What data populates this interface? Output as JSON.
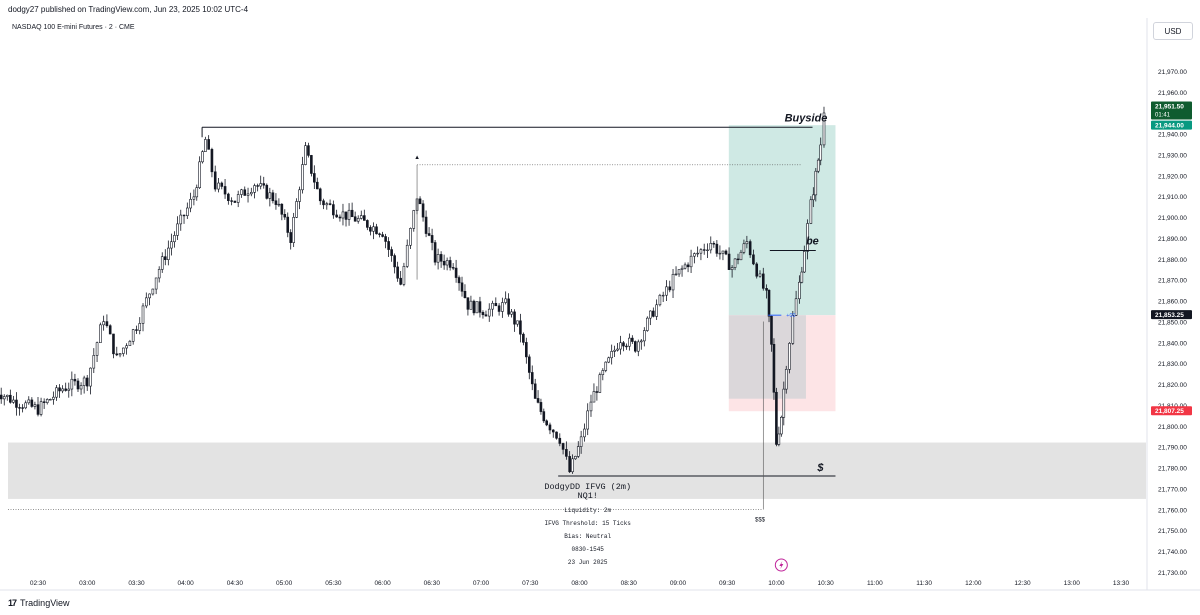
{
  "header": {
    "publisher_text": "dodgy27 published on TradingView.com, Jun 23, 2025 10:02 UTC-4"
  },
  "symbol_line": "NASDAQ 100 E-mini Futures · 2 · CME",
  "currency_button": "USD",
  "footer": {
    "logo": "17",
    "brand": "TradingView"
  },
  "colors": {
    "candle": "#131722",
    "target_zone": "#cfe9e4",
    "stop_zone": "#fde4e6",
    "inner_box": "#d5d5d7",
    "liquidity_band": "#e3e3e3",
    "price_tag_dark": "#0f5c2f",
    "price_tag_green": "#089981",
    "price_tag_red": "#f23645",
    "price_tag_black": "#131722",
    "lightning": "#c0259a"
  },
  "chart_data": {
    "type": "candlestick",
    "symbol": "NASDAQ 100 E-mini Futures",
    "interval": "2",
    "exchange": "CME",
    "currency": "USD",
    "ylim": [
      21730,
      21980
    ],
    "y_ticks": [
      "21,970.00",
      "21,960.00",
      "21,950.00",
      "21,940.00",
      "21,930.00",
      "21,920.00",
      "21,910.00",
      "21,900.00",
      "21,890.00",
      "21,880.00",
      "21,870.00",
      "21,860.00",
      "21,850.00",
      "21,840.00",
      "21,830.00",
      "21,820.00",
      "21,810.00",
      "21,800.00",
      "21,790.00",
      "21,780.00",
      "21,770.00",
      "21,760.00",
      "21,750.00",
      "21,740.00",
      "21,730.00"
    ],
    "x_ticks": [
      "02:30",
      "03:00",
      "03:30",
      "04:00",
      "04:30",
      "05:00",
      "05:30",
      "06:00",
      "06:30",
      "07:00",
      "07:30",
      "08:00",
      "08:30",
      "09:00",
      "09:30",
      "10:00",
      "10:30",
      "11:00",
      "11:30",
      "12:00",
      "12:30",
      "13:00",
      "13:30"
    ],
    "x_tick_minutes": [
      150,
      180,
      210,
      240,
      270,
      300,
      330,
      360,
      390,
      420,
      450,
      480,
      510,
      540,
      570,
      600,
      630,
      660,
      690,
      720,
      750,
      780,
      810
    ],
    "x_start_minutes": 122,
    "x_end_minutes": 837,
    "price_path": [
      [
        122,
        21818
      ],
      [
        135,
        21812
      ],
      [
        150,
        21808
      ],
      [
        165,
        21818
      ],
      [
        180,
        21822
      ],
      [
        190,
        21852
      ],
      [
        198,
        21832
      ],
      [
        210,
        21848
      ],
      [
        222,
        21872
      ],
      [
        235,
        21895
      ],
      [
        245,
        21910
      ],
      [
        252,
        21937
      ],
      [
        258,
        21915
      ],
      [
        270,
        21908
      ],
      [
        282,
        21916
      ],
      [
        295,
        21908
      ],
      [
        304,
        21890
      ],
      [
        313,
        21932
      ],
      [
        322,
        21908
      ],
      [
        334,
        21902
      ],
      [
        347,
        21898
      ],
      [
        360,
        21893
      ],
      [
        371,
        21868
      ],
      [
        381,
        21910
      ],
      [
        392,
        21880
      ],
      [
        403,
        21878
      ],
      [
        412,
        21858
      ],
      [
        423,
        21855
      ],
      [
        435,
        21858
      ],
      [
        444,
        21845
      ],
      [
        453,
        21812
      ],
      [
        460,
        21802
      ],
      [
        468,
        21794
      ],
      [
        474,
        21778
      ],
      [
        481,
        21793
      ],
      [
        487,
        21812
      ],
      [
        496,
        21828
      ],
      [
        505,
        21842
      ],
      [
        514,
        21838
      ],
      [
        525,
        21855
      ],
      [
        537,
        21870
      ],
      [
        548,
        21880
      ],
      [
        560,
        21888
      ],
      [
        573,
        21876
      ],
      [
        582,
        21888
      ],
      [
        590,
        21870
      ],
      [
        594,
        21862
      ],
      [
        597,
        21838
      ],
      [
        600,
        21792
      ],
      [
        603,
        21805
      ],
      [
        606,
        21830
      ],
      [
        610,
        21852
      ],
      [
        614,
        21868
      ],
      [
        617,
        21885
      ],
      [
        621,
        21906
      ],
      [
        624,
        21920
      ],
      [
        627,
        21935
      ],
      [
        629,
        21952
      ]
    ],
    "price_tags": [
      {
        "value": "21,951.50",
        "countdown": "01:41",
        "color": "dark"
      },
      {
        "value": "21,944.00",
        "color": "green"
      },
      {
        "value": "21,853.25",
        "color": "black"
      },
      {
        "value": "21,807.25",
        "color": "red"
      }
    ],
    "levels": [
      {
        "label": "Buyside",
        "price": 21943
      },
      {
        "label": "be",
        "price": 21884
      },
      {
        "label": "$",
        "price": 21776
      }
    ],
    "dotted_levels": [
      {
        "price": 21925,
        "marker": "▲"
      },
      {
        "price": 21760,
        "marker": "$$$"
      }
    ],
    "position": {
      "entry": 21853,
      "target": 21944,
      "stop": 21807,
      "entry_label": "+00"
    },
    "inner_box": {
      "from": 21853,
      "to": 21813
    },
    "liquidity_zone": {
      "from": 21792,
      "to": 21765
    },
    "indicator_panel": {
      "title": "DodgyDD IFVG (2m)",
      "subtitle": "NQ1!",
      "lines": [
        "Liquidity: 2m",
        "IFVG Threshold: 15 Ticks",
        "Bias: Neutral",
        "0830-1545",
        "23 Jun 2025"
      ]
    }
  }
}
